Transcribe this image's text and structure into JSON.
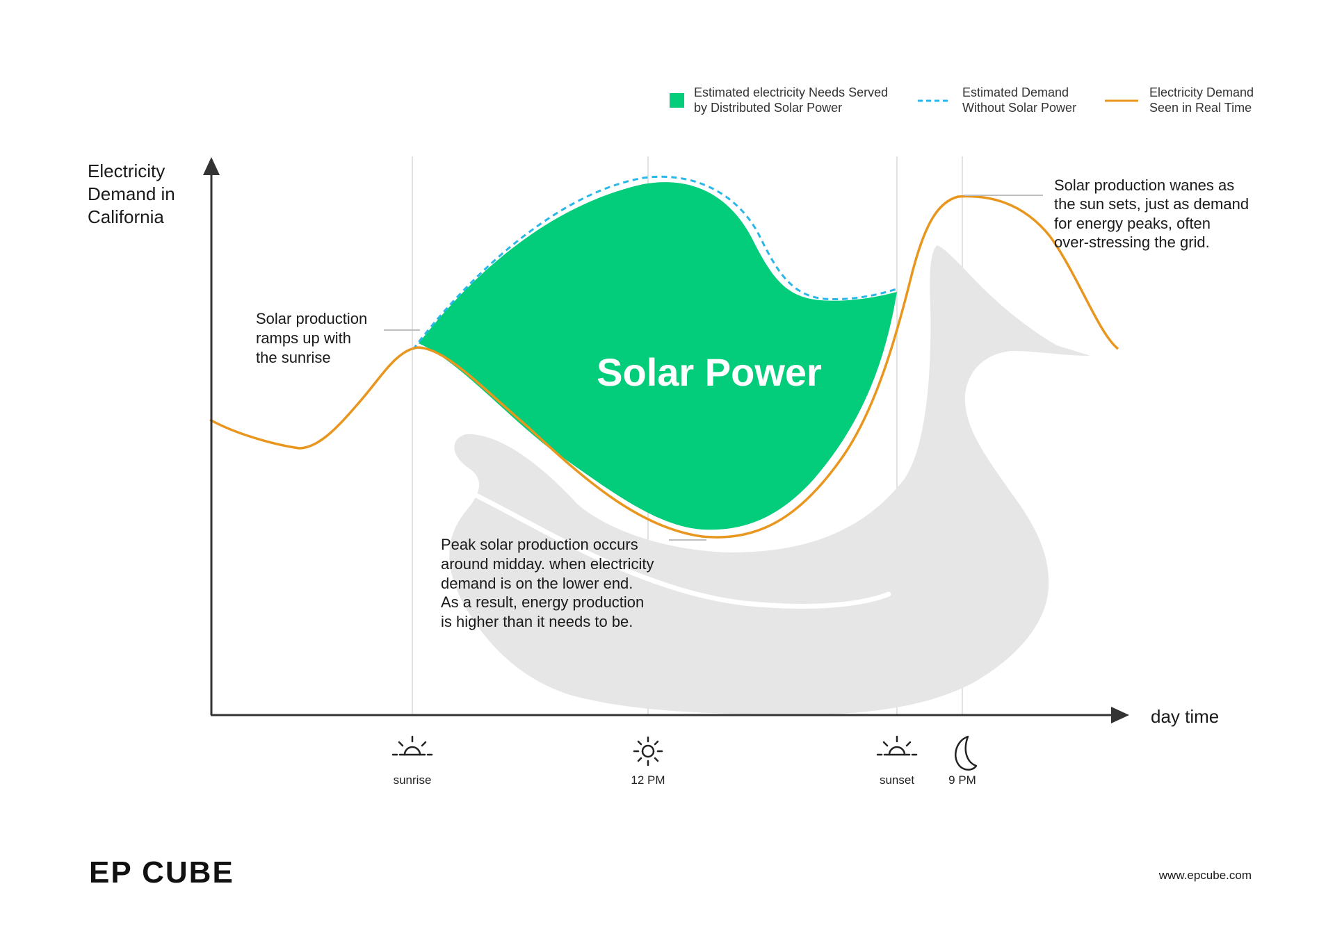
{
  "legend": {
    "solar_served": [
      "Estimated electricity Needs Served",
      "by Distributed Solar Power"
    ],
    "demand_without_solar": [
      "Estimated Demand",
      "Without Solar Power"
    ],
    "demand_real_time": [
      "Electricity Demand",
      "Seen in Real Time"
    ]
  },
  "axes": {
    "y_title": [
      "Electricity",
      "Demand in",
      "California"
    ],
    "x_title": "day time"
  },
  "annotations": {
    "sunrise": [
      "Solar production",
      "ramps up with",
      "the sunrise"
    ],
    "midday": [
      "Peak solar production occurs",
      "around midday. when electricity",
      "demand is on the lower end.",
      "As a result, energy production",
      "is higher than it needs to be."
    ],
    "sunset": [
      "Solar production wanes as",
      "the sun sets, just as demand",
      "for energy peaks, often",
      "over-stressing the grid."
    ]
  },
  "solar_label": "Solar Power",
  "time_markers": [
    {
      "label": "sunrise",
      "icon": "sunrise-icon"
    },
    {
      "label": "12 PM",
      "icon": "sun-icon"
    },
    {
      "label": "sunset",
      "icon": "sunset-icon"
    },
    {
      "label": "9 PM",
      "icon": "moon-icon"
    }
  ],
  "footer": {
    "brand": "EP CUBE",
    "url": "www.epcube.com"
  },
  "colors": {
    "solar_fill": "#03CC7B",
    "demand_line": "#E8961E",
    "without_solar_dash": "#29B6E8",
    "duck": "#E6E6E6",
    "axis": "#333333",
    "gridline": "#D9D9D9"
  }
}
